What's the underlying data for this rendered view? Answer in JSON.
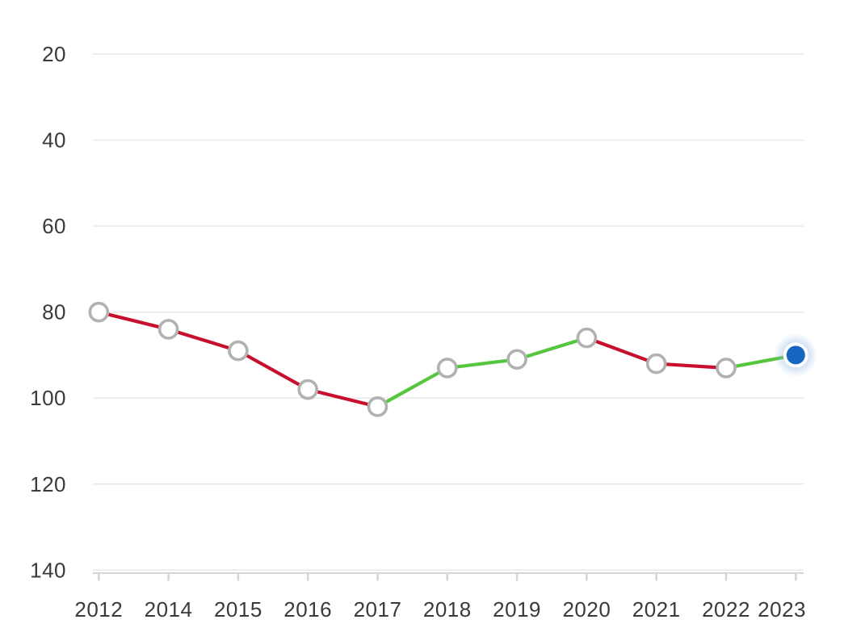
{
  "chart_data": {
    "type": "line",
    "title": "",
    "x_label": "",
    "y_label": "",
    "x_categories": [
      "2012",
      "2014",
      "2015",
      "2016",
      "2017",
      "2018",
      "2019",
      "2020",
      "2021",
      "2022",
      "2023"
    ],
    "values": [
      80,
      84,
      89,
      98,
      102,
      93,
      91,
      86,
      92,
      93,
      90
    ],
    "y_ticks": [
      "20",
      "40",
      "60",
      "80",
      "100",
      "120",
      "140"
    ],
    "y_tick_values": [
      20,
      40,
      60,
      80,
      100,
      120,
      140
    ],
    "y_axis": {
      "min": 20,
      "max": 140,
      "inverted": true
    },
    "grid": "horizontal-only",
    "legend": "none",
    "last_point_highlighted": true,
    "colors": {
      "decline_segment": "#c8102e",
      "improve_segment": "#56c63f",
      "marker_fill": "#ffffff",
      "marker_stroke": "#b1b1b1",
      "current_point_fill": "#1466c1",
      "current_point_ring": "#ffffff",
      "current_point_glow": "#8cb4e1",
      "grid_line": "#e7e7e7",
      "axis_line": "#d5d5d5",
      "label_text": "#3a3a3a"
    }
  }
}
